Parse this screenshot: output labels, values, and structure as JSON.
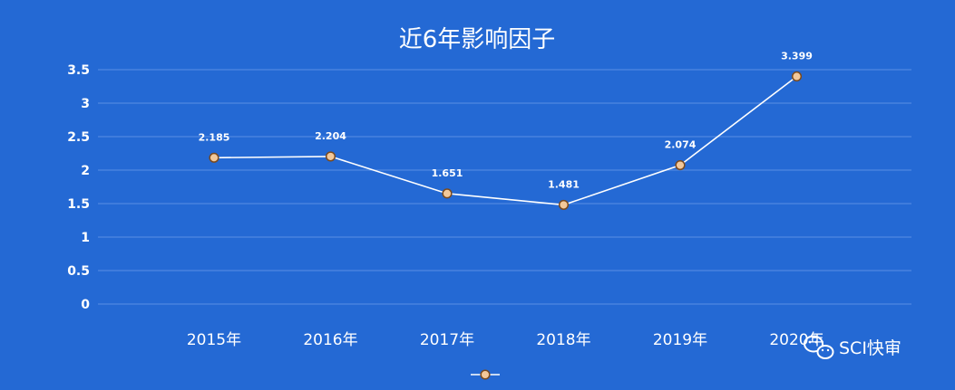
{
  "chart_data": {
    "type": "line",
    "title": "近6年影响因子",
    "categories": [
      "2015年",
      "2016年",
      "2017年",
      "2018年",
      "2019年",
      "2020年"
    ],
    "values": [
      2.185,
      2.204,
      1.651,
      1.481,
      2.074,
      3.399
    ],
    "ylim": [
      0,
      3.5
    ],
    "yticks": [
      0,
      0.5,
      1,
      1.5,
      2,
      2.5,
      3,
      3.5
    ],
    "grid": true,
    "legend": "bottom",
    "colors": {
      "background": "#2469D4",
      "line": "#FFFFFF",
      "marker_fill": "#F2C89A",
      "marker_stroke": "#7A4A1E",
      "grid": "#5A8FE3"
    }
  },
  "watermark": {
    "text": "SCI快审",
    "icon": "wechat-icon"
  }
}
